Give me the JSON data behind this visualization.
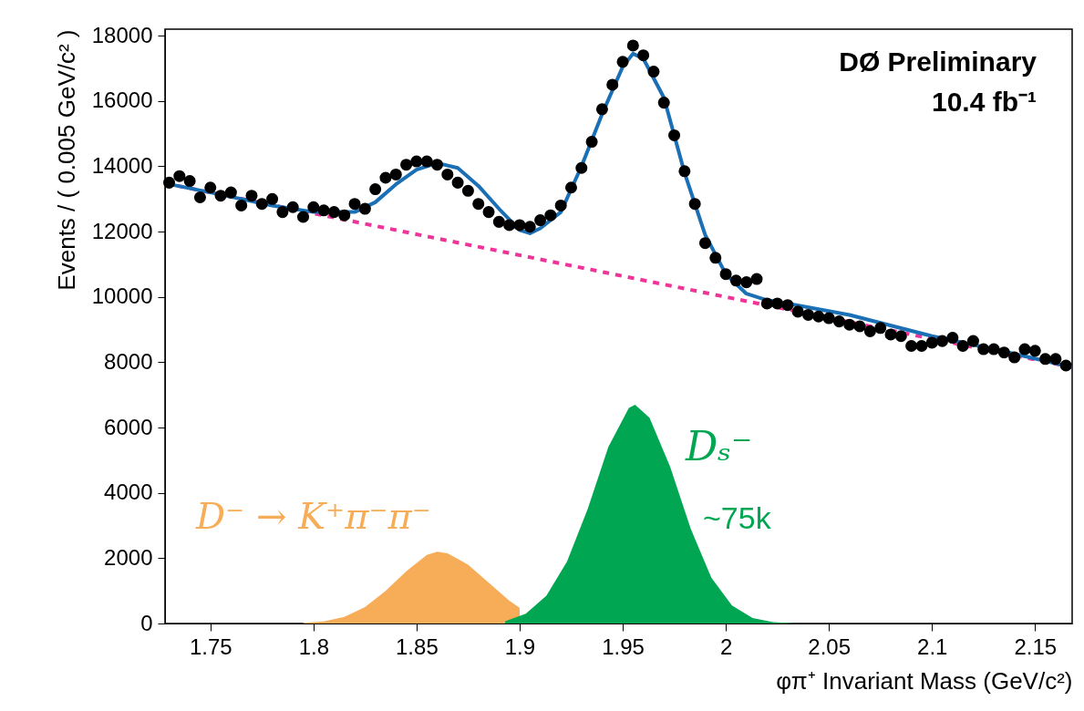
{
  "chart_data": {
    "type": "scatter",
    "xlabel": "φπ⁺ Invariant Mass (GeV/c²)",
    "ylabel": "Events / ( 0.005 GeV/c² )",
    "xlim": [
      1.728,
      2.168
    ],
    "xticks": [
      1.75,
      1.8,
      1.85,
      1.9,
      1.95,
      2,
      2.05,
      2.1,
      2.15
    ],
    "ylim": [
      0,
      18200
    ],
    "yticks": [
      0,
      2000,
      4000,
      6000,
      8000,
      10000,
      12000,
      14000,
      16000,
      18000
    ],
    "annotations": [
      "DØ Preliminary",
      "10.4 fb⁻¹",
      "~75k"
    ],
    "series": [
      {
        "type": "area",
        "name": "D⁻ → K⁺π⁻π⁻",
        "color": "#f7ac57",
        "x": [
          1.795,
          1.805,
          1.815,
          1.825,
          1.835,
          1.845,
          1.855,
          1.86,
          1.865,
          1.875,
          1.885,
          1.895,
          1.9
        ],
        "values": [
          20,
          60,
          200,
          500,
          1000,
          1600,
          2100,
          2200,
          2150,
          1800,
          1250,
          700,
          480
        ]
      },
      {
        "type": "area",
        "name": "Dₛ⁻",
        "color": "#00a651",
        "x": [
          1.893,
          1.903,
          1.913,
          1.923,
          1.933,
          1.943,
          1.953,
          1.956,
          1.963,
          1.973,
          1.983,
          1.993,
          2.003,
          2.013,
          2.023,
          2.033
        ],
        "values": [
          70,
          300,
          850,
          1900,
          3500,
          5400,
          6600,
          6700,
          6300,
          4800,
          2900,
          1400,
          550,
          170,
          40,
          10
        ]
      },
      {
        "type": "line",
        "color": "#ee3399",
        "line_style": "dashed",
        "x": [
          1.728,
          2.168
        ],
        "values": [
          13480,
          7850
        ]
      },
      {
        "type": "line",
        "color": "#1a6fb5",
        "line_style": "solid",
        "x": [
          1.728,
          1.75,
          1.78,
          1.8,
          1.82,
          1.83,
          1.84,
          1.85,
          1.86,
          1.87,
          1.88,
          1.89,
          1.9,
          1.905,
          1.91,
          1.92,
          1.93,
          1.94,
          1.95,
          1.955,
          1.96,
          1.97,
          1.98,
          1.99,
          2.0,
          2.01,
          2.02,
          2.03,
          2.06,
          2.1,
          2.13,
          2.168
        ],
        "values": [
          13480,
          13200,
          12800,
          12600,
          12600,
          12900,
          13450,
          13900,
          14100,
          13950,
          13400,
          12700,
          12050,
          11950,
          12100,
          12600,
          14000,
          15600,
          17050,
          17450,
          17300,
          16100,
          13800,
          11900,
          10700,
          10100,
          9900,
          9800,
          9450,
          8800,
          8400,
          7850
        ]
      },
      {
        "color": "#000000",
        "marker": "circle",
        "x": [
          1.73,
          1.735,
          1.74,
          1.745,
          1.75,
          1.755,
          1.76,
          1.765,
          1.77,
          1.775,
          1.78,
          1.785,
          1.79,
          1.795,
          1.8,
          1.805,
          1.81,
          1.815,
          1.82,
          1.825,
          1.83,
          1.835,
          1.84,
          1.845,
          1.85,
          1.855,
          1.86,
          1.865,
          1.87,
          1.875,
          1.88,
          1.885,
          1.89,
          1.895,
          1.9,
          1.905,
          1.91,
          1.915,
          1.92,
          1.925,
          1.93,
          1.935,
          1.94,
          1.945,
          1.95,
          1.955,
          1.96,
          1.965,
          1.97,
          1.975,
          1.98,
          1.985,
          1.99,
          1.995,
          2.0,
          2.005,
          2.01,
          2.015,
          2.02,
          2.025,
          2.03,
          2.035,
          2.04,
          2.045,
          2.05,
          2.055,
          2.06,
          2.065,
          2.07,
          2.075,
          2.08,
          2.085,
          2.09,
          2.095,
          2.1,
          2.105,
          2.11,
          2.115,
          2.12,
          2.125,
          2.13,
          2.135,
          2.14,
          2.145,
          2.15,
          2.155,
          2.16,
          2.165
        ],
        "values": [
          13500,
          13700,
          13550,
          13050,
          13350,
          13100,
          13200,
          12800,
          13100,
          12850,
          13000,
          12600,
          12750,
          12450,
          12750,
          12650,
          12600,
          12500,
          12850,
          12700,
          13300,
          13650,
          13750,
          14050,
          14150,
          14150,
          14050,
          13750,
          13500,
          13250,
          12850,
          12600,
          12300,
          12200,
          12200,
          12150,
          12350,
          12500,
          12800,
          13350,
          13950,
          14750,
          15750,
          16500,
          17200,
          17700,
          17400,
          16900,
          15950,
          14950,
          13850,
          12850,
          11650,
          11200,
          10700,
          10500,
          10450,
          10550,
          9800,
          9800,
          9750,
          9550,
          9450,
          9400,
          9350,
          9250,
          9150,
          9100,
          8950,
          9050,
          8850,
          8800,
          8500,
          8500,
          8600,
          8650,
          8750,
          8500,
          8650,
          8400,
          8400,
          8300,
          8150,
          8400,
          8350,
          8100,
          8100,
          7900
        ]
      }
    ]
  }
}
